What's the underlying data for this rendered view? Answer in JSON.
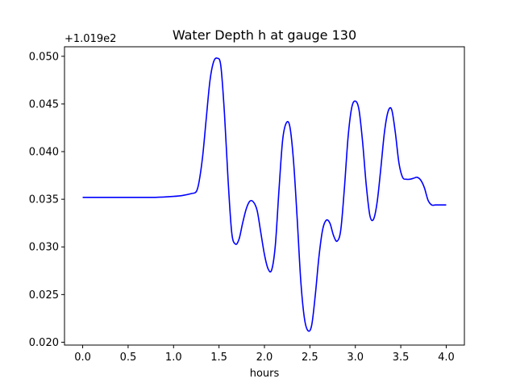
{
  "chart_data": {
    "type": "line",
    "title": "Water Depth h at gauge 130",
    "xlabel": "hours",
    "ylabel": "",
    "offset_label": "+1.019e2",
    "y_offset": 101.9,
    "xlim": [
      -0.2,
      4.2
    ],
    "ylim": [
      0.0197,
      0.051
    ],
    "xticks": [
      0.0,
      0.5,
      1.0,
      1.5,
      2.0,
      2.5,
      3.0,
      3.5,
      4.0
    ],
    "xtick_labels": [
      "0.0",
      "0.5",
      "1.0",
      "1.5",
      "2.0",
      "2.5",
      "3.0",
      "3.5",
      "4.0"
    ],
    "yticks": [
      0.02,
      0.025,
      0.03,
      0.035,
      0.04,
      0.045,
      0.05
    ],
    "ytick_labels": [
      "0.020",
      "0.025",
      "0.030",
      "0.035",
      "0.040",
      "0.045",
      "0.050"
    ],
    "grid": false,
    "series": [
      {
        "color": "#0000ff",
        "x": [
          0.0,
          0.5,
          0.8,
          1.0,
          1.1,
          1.2,
          1.25,
          1.28,
          1.32,
          1.36,
          1.4,
          1.44,
          1.48,
          1.52,
          1.56,
          1.6,
          1.64,
          1.68,
          1.72,
          1.76,
          1.8,
          1.84,
          1.88,
          1.92,
          1.96,
          2.0,
          2.04,
          2.08,
          2.12,
          2.16,
          2.2,
          2.24,
          2.28,
          2.32,
          2.36,
          2.4,
          2.44,
          2.48,
          2.52,
          2.56,
          2.6,
          2.64,
          2.68,
          2.72,
          2.76,
          2.8,
          2.84,
          2.88,
          2.92,
          2.96,
          3.0,
          3.04,
          3.08,
          3.12,
          3.16,
          3.2,
          3.24,
          3.28,
          3.32,
          3.36,
          3.4,
          3.44,
          3.48,
          3.52,
          3.56,
          3.6,
          3.64,
          3.68,
          3.72,
          3.76,
          3.8,
          3.84,
          3.88,
          3.92,
          3.96,
          4.0
        ],
        "y": [
          0.0352,
          0.0352,
          0.0352,
          0.0353,
          0.0354,
          0.0356,
          0.0358,
          0.0368,
          0.0395,
          0.0435,
          0.0474,
          0.0494,
          0.0498,
          0.049,
          0.044,
          0.037,
          0.0315,
          0.0303,
          0.0308,
          0.0325,
          0.034,
          0.0348,
          0.0347,
          0.0338,
          0.0315,
          0.0292,
          0.0277,
          0.0276,
          0.0302,
          0.036,
          0.0412,
          0.043,
          0.0426,
          0.039,
          0.033,
          0.0264,
          0.0225,
          0.0212,
          0.0218,
          0.025,
          0.029,
          0.0318,
          0.0328,
          0.0325,
          0.0312,
          0.0306,
          0.0318,
          0.0362,
          0.0415,
          0.0446,
          0.0453,
          0.0444,
          0.041,
          0.0365,
          0.0333,
          0.0329,
          0.0347,
          0.0382,
          0.042,
          0.0442,
          0.0444,
          0.042,
          0.0388,
          0.0373,
          0.0371,
          0.0371,
          0.0372,
          0.0373,
          0.037,
          0.0362,
          0.0349,
          0.0344,
          0.0344,
          0.0344,
          0.0344,
          0.0344
        ]
      }
    ]
  }
}
